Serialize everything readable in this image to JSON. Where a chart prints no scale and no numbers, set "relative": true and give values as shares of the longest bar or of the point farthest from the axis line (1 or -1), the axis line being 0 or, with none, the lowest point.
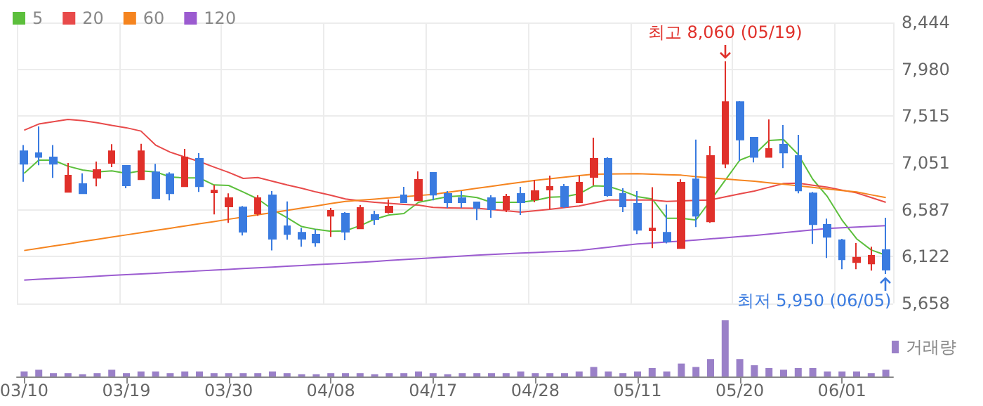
{
  "chart_data": [
    {
      "type": "candlestick",
      "categories": [
        "03/10",
        null,
        null,
        null,
        null,
        null,
        null,
        "03/19",
        null,
        null,
        null,
        null,
        null,
        null,
        "03/30",
        null,
        null,
        null,
        null,
        null,
        null,
        "04/08",
        null,
        null,
        null,
        null,
        null,
        null,
        "04/17",
        null,
        null,
        null,
        null,
        null,
        null,
        "04/28",
        null,
        null,
        null,
        null,
        null,
        null,
        "05/11",
        null,
        null,
        null,
        null,
        null,
        null,
        "05/20",
        null,
        null,
        null,
        null,
        null,
        null,
        "06/01",
        null,
        null,
        null
      ],
      "ohlc": [
        [
          7167,
          7228,
          6865,
          7042
        ],
        [
          7149,
          7413,
          7028,
          7111
        ],
        [
          7107,
          7228,
          6903,
          7042
        ],
        [
          6763,
          7051,
          6763,
          6926
        ],
        [
          6842,
          6949,
          6749,
          6749
        ],
        [
          6903,
          7065,
          6819,
          6981
        ],
        [
          7051,
          7237,
          7009,
          7167
        ],
        [
          7023,
          7023,
          6800,
          6828
        ],
        [
          6889,
          7241,
          6889,
          7167
        ],
        [
          6958,
          7042,
          6694,
          6703
        ],
        [
          6940,
          6958,
          6680,
          6749
        ],
        [
          6819,
          7190,
          6819,
          7107
        ],
        [
          7093,
          7149,
          6763,
          6819
        ],
        [
          6759,
          6833,
          6540,
          6777
        ],
        [
          6619,
          6749,
          6457,
          6703
        ],
        [
          6610,
          6624,
          6331,
          6369
        ],
        [
          6550,
          6731,
          6527,
          6703
        ],
        [
          6731,
          6773,
          6183,
          6299
        ],
        [
          6424,
          6670,
          6290,
          6345
        ],
        [
          6359,
          6406,
          6220,
          6299
        ],
        [
          6341,
          6392,
          6220,
          6262
        ],
        [
          6527,
          6605,
          6318,
          6578
        ],
        [
          6550,
          6564,
          6285,
          6369
        ],
        [
          6401,
          6633,
          6401,
          6605
        ],
        [
          6536,
          6578,
          6438,
          6494
        ],
        [
          6564,
          6689,
          6550,
          6619
        ],
        [
          6731,
          6814,
          6661,
          6661
        ],
        [
          6680,
          6968,
          6680,
          6884
        ],
        [
          6954,
          6954,
          6680,
          6735
        ],
        [
          6745,
          6773,
          6605,
          6661
        ],
        [
          6703,
          6773,
          6605,
          6661
        ],
        [
          6661,
          6661,
          6485,
          6605
        ],
        [
          6703,
          6731,
          6508,
          6591
        ],
        [
          6591,
          6745,
          6564,
          6717
        ],
        [
          6745,
          6814,
          6536,
          6661
        ],
        [
          6689,
          6884,
          6661,
          6773
        ],
        [
          6787,
          6926,
          6591,
          6814
        ],
        [
          6814,
          6842,
          6605,
          6619
        ],
        [
          6661,
          6926,
          6661,
          6856
        ],
        [
          6912,
          7302,
          6828,
          7093
        ],
        [
          7093,
          7107,
          6717,
          6731
        ],
        [
          6745,
          6800,
          6564,
          6619
        ],
        [
          6647,
          6773,
          6345,
          6387
        ],
        [
          6383,
          6810,
          6206,
          6401
        ],
        [
          6359,
          6638,
          6253,
          6271
        ],
        [
          6206,
          6889,
          6206,
          6856
        ],
        [
          6889,
          7283,
          6415,
          6527
        ],
        [
          6471,
          7218,
          6457,
          7121
        ],
        [
          7042,
          8060,
          7000,
          7655
        ],
        [
          7655,
          7664,
          7070,
          7283
        ],
        [
          7302,
          7302,
          7056,
          7111
        ],
        [
          7111,
          7483,
          7111,
          7190
        ],
        [
          7232,
          7427,
          7000,
          7153
        ],
        [
          7121,
          7330,
          6749,
          6777
        ],
        [
          6749,
          6763,
          6248,
          6443
        ],
        [
          6438,
          6499,
          6109,
          6318
        ],
        [
          6285,
          6299,
          5997,
          6095
        ],
        [
          6067,
          6257,
          5997,
          6113
        ],
        [
          6053,
          6220,
          5983,
          6132
        ],
        [
          6188,
          6508,
          5950,
          5993
        ]
      ],
      "series": [
        {
          "type": "line",
          "name": "5",
          "color": "#5cbf3c",
          "values": [
            6949,
            7079,
            7079,
            7019,
            6981,
            6963,
            6972,
            6949,
            6972,
            6963,
            6912,
            6903,
            6903,
            6833,
            6828,
            6763,
            6694,
            6591,
            6508,
            6420,
            6392,
            6373,
            6378,
            6429,
            6494,
            6536,
            6550,
            6661,
            6689,
            6717,
            6726,
            6708,
            6661,
            6661,
            6661,
            6680,
            6712,
            6717,
            6745,
            6824,
            6819,
            6773,
            6717,
            6694,
            6503,
            6503,
            6485,
            6680,
            6879,
            7079,
            7135,
            7274,
            7283,
            7135,
            6889,
            6717,
            6485,
            6299,
            6188,
            6137
          ]
        },
        {
          "type": "line",
          "name": "20",
          "color": "#e84a4a",
          "values": [
            7376,
            7437,
            7460,
            7483,
            7470,
            7450,
            7423,
            7400,
            7367,
            7228,
            7158,
            7110,
            7065,
            7010,
            6958,
            6898,
            6907,
            6870,
            6833,
            6800,
            6763,
            6730,
            6694,
            6675,
            6661,
            6650,
            6640,
            6633,
            6610,
            6605,
            6603,
            6601,
            6590,
            6578,
            6564,
            6578,
            6592,
            6608,
            6624,
            6654,
            6684,
            6684,
            6684,
            6684,
            6670,
            6675,
            6680,
            6684,
            6715,
            6745,
            6773,
            6810,
            6847,
            6851,
            6830,
            6810,
            6782,
            6754,
            6708,
            6661
          ]
        },
        {
          "type": "line",
          "name": "60",
          "color": "#f5841f",
          "values": [
            6183,
            6205,
            6227,
            6249,
            6272,
            6294,
            6316,
            6338,
            6360,
            6382,
            6404,
            6426,
            6448,
            6470,
            6493,
            6515,
            6537,
            6559,
            6581,
            6603,
            6625,
            6648,
            6670,
            6682,
            6693,
            6705,
            6717,
            6728,
            6740,
            6760,
            6780,
            6800,
            6820,
            6840,
            6860,
            6879,
            6894,
            6910,
            6925,
            6940,
            6941,
            6943,
            6944,
            6940,
            6935,
            6930,
            6916,
            6903,
            6892,
            6881,
            6870,
            6855,
            6840,
            6824,
            6809,
            6794,
            6778,
            6763,
            6735,
            6708
          ]
        },
        {
          "type": "line",
          "name": "120",
          "color": "#9b5bd0",
          "values": [
            5890,
            5898,
            5905,
            5913,
            5920,
            5928,
            5936,
            5943,
            5951,
            5958,
            5966,
            5974,
            5981,
            5989,
            5996,
            6004,
            6012,
            6019,
            6027,
            6034,
            6042,
            6050,
            6057,
            6066,
            6075,
            6084,
            6093,
            6102,
            6110,
            6119,
            6128,
            6137,
            6144,
            6150,
            6157,
            6163,
            6170,
            6176,
            6183,
            6199,
            6216,
            6232,
            6248,
            6257,
            6267,
            6276,
            6287,
            6298,
            6310,
            6321,
            6332,
            6346,
            6360,
            6373,
            6387,
            6401,
            6408,
            6415,
            6422,
            6429
          ]
        }
      ],
      "ylim": [
        5658,
        8444
      ],
      "yticks": [
        {
          "value": 5658,
          "label": "5,658"
        },
        {
          "value": 6122,
          "label": "6,122"
        },
        {
          "value": 6587,
          "label": "6,587"
        },
        {
          "value": 7051,
          "label": "7,051"
        },
        {
          "value": 7515,
          "label": "7,515"
        },
        {
          "value": 7980,
          "label": "7,980"
        },
        {
          "value": 8444,
          "label": "8,444"
        }
      ],
      "annotations": [
        "최고 8,060 (05/19)",
        "최저 5,950 (06/05)"
      ],
      "grid": true,
      "legend": "top left"
    },
    {
      "type": "bar",
      "relative": true,
      "categories": [
        null,
        null,
        null,
        null,
        null,
        null,
        null,
        null,
        null,
        null,
        null,
        null,
        null,
        null,
        null,
        null,
        null,
        null,
        null,
        null,
        null,
        null,
        null,
        null,
        null,
        null,
        null,
        null,
        null,
        null,
        null,
        null,
        null,
        null,
        null,
        null,
        null,
        null,
        null,
        null,
        null,
        null,
        null,
        null,
        null,
        null,
        null,
        null,
        null,
        null,
        null,
        null,
        null,
        null,
        null,
        null,
        null,
        null,
        null,
        null
      ],
      "series": [
        {
          "name": "거래량",
          "color": "#9a80c8",
          "values": [
            0.09,
            0.12,
            0.06,
            0.06,
            0.04,
            0.06,
            0.12,
            0.06,
            0.09,
            0.09,
            0.06,
            0.09,
            0.09,
            0.06,
            0.06,
            0.06,
            0.06,
            0.09,
            0.06,
            0.04,
            0.04,
            0.06,
            0.06,
            0.06,
            0.04,
            0.06,
            0.06,
            0.09,
            0.06,
            0.04,
            0.06,
            0.06,
            0.06,
            0.06,
            0.09,
            0.06,
            0.06,
            0.06,
            0.09,
            0.17,
            0.09,
            0.06,
            0.09,
            0.15,
            0.09,
            0.23,
            0.17,
            0.31,
            1,
            0.31,
            0.2,
            0.15,
            0.12,
            0.15,
            0.15,
            0.09,
            0.09,
            0.09,
            0.06,
            0.12
          ]
        }
      ],
      "legend": "right"
    }
  ]
}
